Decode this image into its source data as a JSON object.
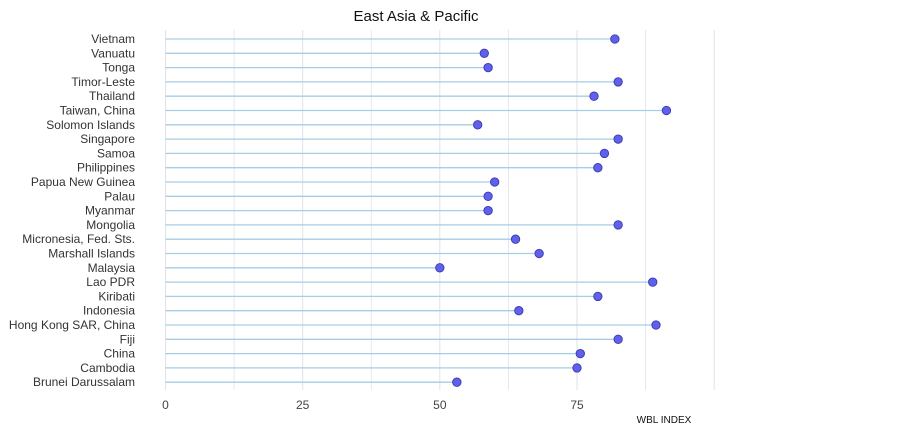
{
  "chart_data": {
    "type": "scatter",
    "style": "lollipop-horizontal",
    "title": "East Asia & Pacific",
    "xlabel": "WBL INDEX",
    "ylabel": "",
    "xlim": [
      0,
      100
    ],
    "xticks": [
      0,
      25,
      50,
      75
    ],
    "grid": true,
    "legend": "none",
    "categories": [
      "Vietnam",
      "Vanuatu",
      "Tonga",
      "Timor-Leste",
      "Thailand",
      "Taiwan, China",
      "Solomon Islands",
      "Singapore",
      "Samoa",
      "Philippines",
      "Papua New Guinea",
      "Palau",
      "Myanmar",
      "Mongolia",
      "Micronesia, Fed. Sts.",
      "Marshall Islands",
      "Malaysia",
      "Lao PDR",
      "Kiribati",
      "Indonesia",
      "Hong Kong SAR, China",
      "Fiji",
      "China",
      "Cambodia",
      "Brunei Darussalam"
    ],
    "values": [
      81.9,
      58.1,
      58.8,
      82.5,
      78.1,
      91.3,
      56.9,
      82.5,
      80.0,
      78.8,
      60.0,
      58.8,
      58.8,
      82.5,
      63.8,
      68.1,
      50.0,
      88.8,
      78.8,
      64.4,
      89.4,
      82.5,
      75.6,
      75.0,
      53.1
    ],
    "colors": {
      "stem": "#a6cde6",
      "point_fill": "#6060ee",
      "point_stroke": "#3a3aa8",
      "grid": "#dde3ea",
      "background": "#ffffff"
    }
  }
}
